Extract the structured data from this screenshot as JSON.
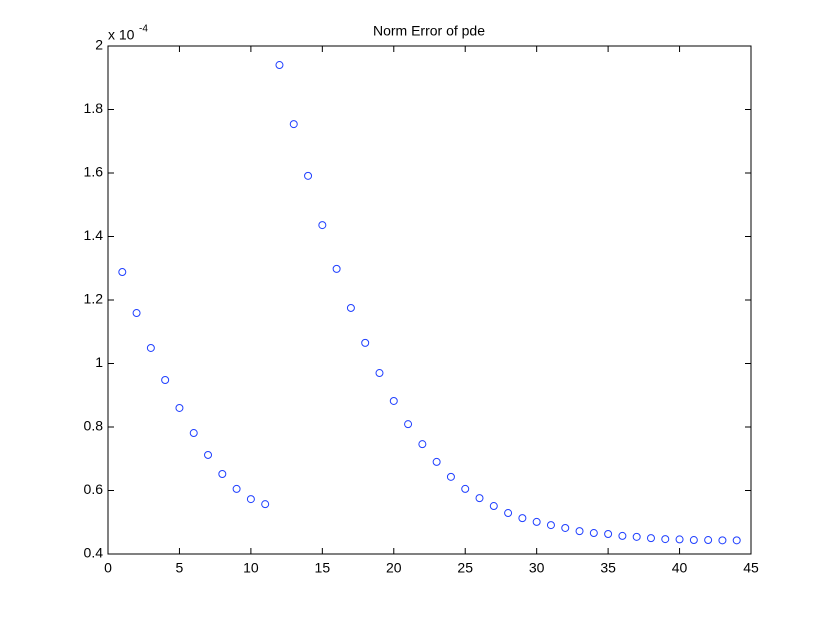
{
  "chart_data": {
    "type": "scatter",
    "title": "Norm Error of pde",
    "y_multiplier": {
      "base": "x 10",
      "exponent": "-4"
    },
    "series": [
      {
        "color": "#1f3fff",
        "x": [
          1,
          2,
          3,
          4,
          5,
          6,
          7,
          8,
          9,
          10,
          11,
          12,
          13,
          14,
          15,
          16,
          17,
          18,
          19,
          20,
          21,
          22,
          23,
          24,
          25,
          26,
          27,
          28,
          29,
          30,
          31,
          32,
          33,
          34,
          35,
          36,
          37,
          38,
          39,
          40,
          41,
          42,
          43,
          44
        ],
        "values": [
          1.288,
          1.159,
          1.049,
          0.948,
          0.86,
          0.781,
          0.712,
          0.652,
          0.605,
          0.573,
          0.557,
          1.94,
          1.754,
          1.591,
          1.436,
          1.298,
          1.175,
          1.065,
          0.97,
          0.882,
          0.809,
          0.746,
          0.69,
          0.643,
          0.605,
          0.576,
          0.551,
          0.529,
          0.513,
          0.501,
          0.491,
          0.482,
          0.472,
          0.466,
          0.463,
          0.457,
          0.454,
          0.45,
          0.447,
          0.446,
          0.444,
          0.444,
          0.443,
          0.443
        ]
      }
    ],
    "xlim": [
      0,
      45
    ],
    "xticks": [
      0,
      5,
      10,
      15,
      20,
      25,
      30,
      35,
      40,
      45
    ],
    "ylim": [
      0.4,
      2
    ],
    "yticks": [
      0.4,
      0.6,
      0.8,
      1,
      1.2,
      1.4,
      1.6,
      1.8,
      2
    ],
    "grid": false
  }
}
